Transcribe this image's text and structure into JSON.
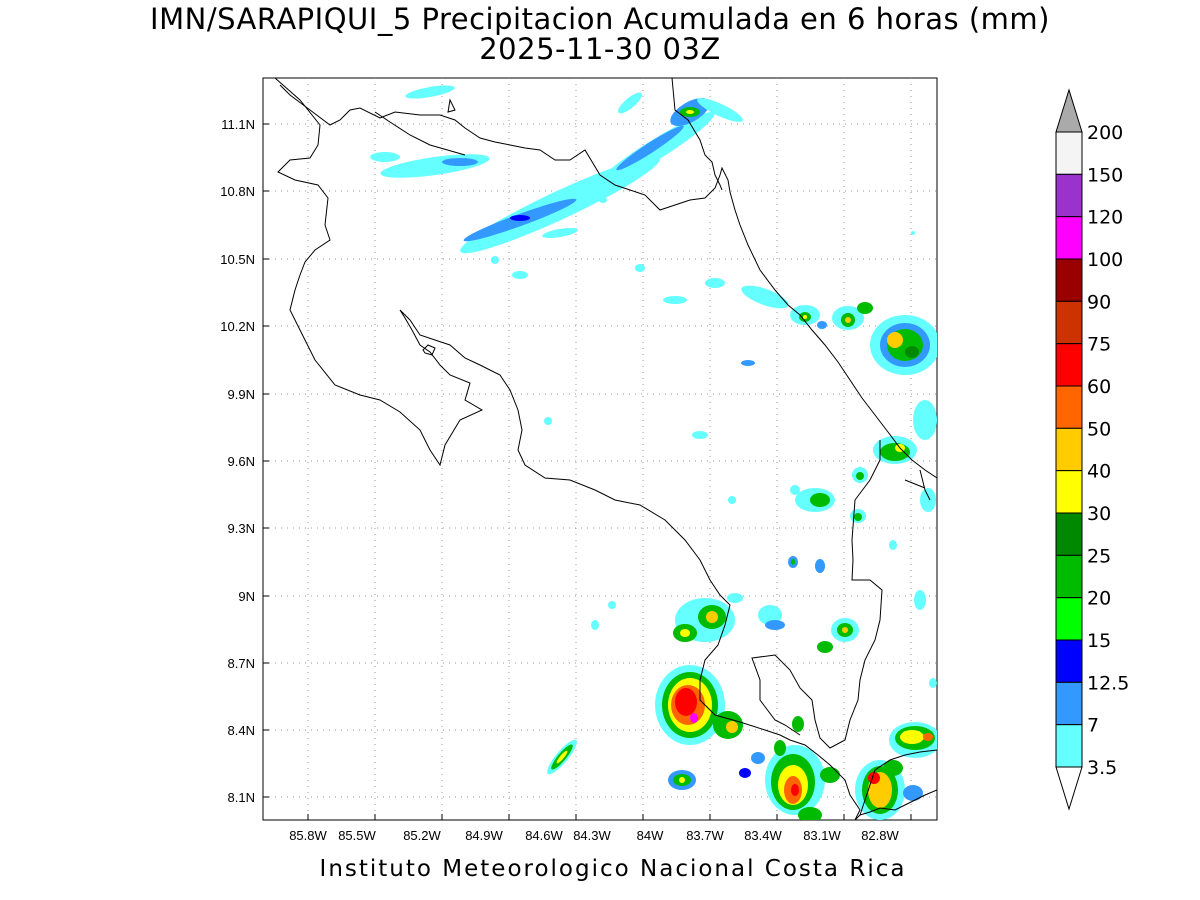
{
  "header": {
    "title_line1": "IMN/SARAPIQUI_5 Precipitacion Acumulada en 6 horas (mm)",
    "title_line2": "2025-11-30 03Z"
  },
  "footer": {
    "credit": "Instituto Meteorologico Nacional Costa Rica"
  },
  "map": {
    "lon_labels": [
      "85.8W",
      "85.5W",
      "85.2W",
      "84.9W",
      "84.6W",
      "84.3W",
      "84W",
      "83.7W",
      "83.4W",
      "83.1W",
      "82.8W"
    ],
    "lat_labels": [
      "11.1N",
      "10.8N",
      "10.5N",
      "10.2N",
      "9.9N",
      "9.6N",
      "9.3N",
      "9N",
      "8.7N",
      "8.4N",
      "8.1N"
    ]
  },
  "colorbar": {
    "labels": [
      "200",
      "150",
      "120",
      "100",
      "90",
      "75",
      "60",
      "50",
      "40",
      "30",
      "25",
      "20",
      "15",
      "12.5",
      "7",
      "3.5"
    ],
    "colors": [
      "#f4f4f4",
      "#9933cc",
      "#ff00ff",
      "#990000",
      "#cc3300",
      "#ff0000",
      "#ff6600",
      "#ffcc00",
      "#ffff00",
      "#008800",
      "#00bb00",
      "#00ff00",
      "#0000ff",
      "#3399ff",
      "#66ffff"
    ],
    "top_arrow_color": "#aaaaaa",
    "bottom_arrow_color": "#ffffff"
  }
}
